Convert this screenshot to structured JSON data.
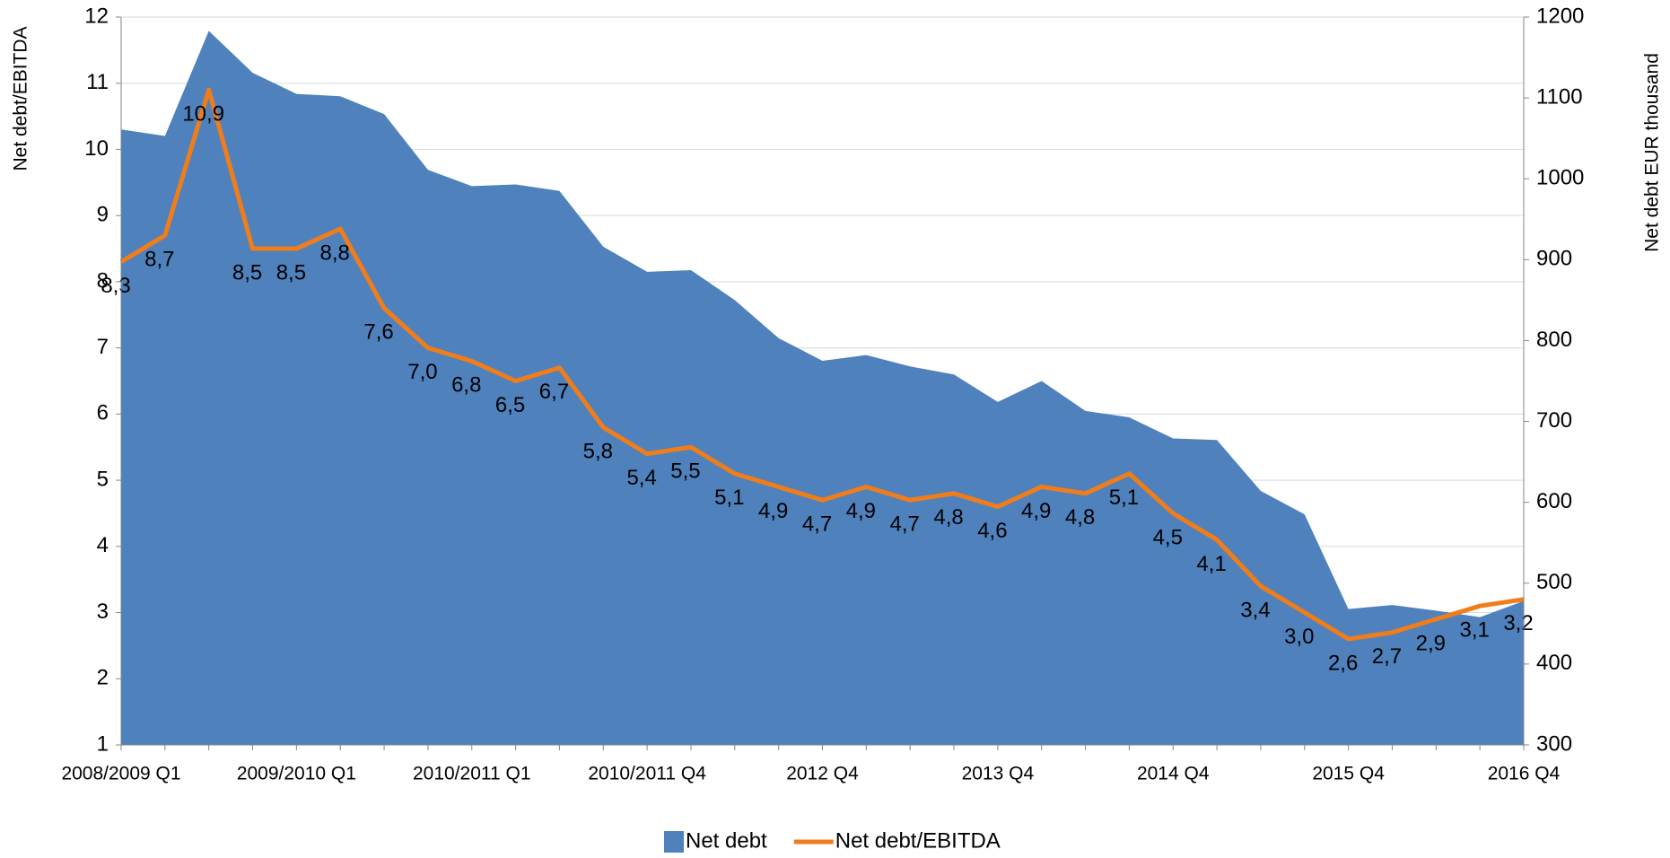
{
  "chart_data": {
    "type": "area_line",
    "categories": [
      "2008/2009 Q1",
      null,
      null,
      null,
      "2009/2010 Q1",
      null,
      null,
      null,
      "2010/2011 Q1",
      null,
      null,
      null,
      "2010/2011 Q4",
      null,
      null,
      null,
      "2012 Q4",
      null,
      null,
      null,
      "2013 Q4",
      null,
      null,
      null,
      "2014 Q4",
      null,
      null,
      null,
      "2015 Q4",
      null,
      null,
      null,
      "2016 Q4"
    ],
    "y_label": "Net debt/EBITDA",
    "y2_label": "Net debt EUR thousand",
    "ylim": [
      1,
      12
    ],
    "yticks": [
      1,
      2,
      3,
      4,
      5,
      6,
      7,
      8,
      9,
      10,
      11,
      12
    ],
    "y2lim": [
      300,
      1200
    ],
    "y2ticks": [
      300,
      400,
      500,
      600,
      700,
      800,
      900,
      1000,
      1100,
      1200
    ],
    "grid": true,
    "legend": "bottom",
    "series": [
      {
        "name": "Net debt",
        "type": "area",
        "axis": "y2",
        "color": "#4f81bd",
        "values": [
          1061,
          1053,
          1183,
          1131,
          1105,
          1102,
          1080,
          1011,
          991,
          993,
          985,
          916,
          885,
          887,
          850,
          803,
          775,
          782,
          768,
          758,
          724,
          750,
          713,
          705,
          679,
          677,
          614,
          585,
          468,
          473,
          466,
          458,
          478
        ]
      },
      {
        "name": "Net debt/EBITDA",
        "type": "line",
        "axis": "y",
        "color": "#f07d1a",
        "values": [
          8.3,
          8.7,
          10.9,
          8.5,
          8.5,
          8.8,
          7.6,
          7.0,
          6.8,
          6.5,
          6.7,
          5.8,
          5.4,
          5.5,
          5.1,
          4.9,
          4.7,
          4.9,
          4.7,
          4.8,
          4.6,
          4.9,
          4.8,
          5.1,
          4.5,
          4.1,
          3.4,
          3.0,
          2.6,
          2.7,
          2.9,
          3.1,
          3.2
        ],
        "value_labels": [
          "8,3",
          "8,7",
          "10,9",
          "8,5",
          "8,5",
          "8,8",
          "7,6",
          "7,0",
          "6,8",
          "6,5",
          "6,7",
          "5,8",
          "5,4",
          "5,5",
          "5,1",
          "4,9",
          "4,7",
          "4,9",
          "4,7",
          "4,8",
          "4,6",
          "4,9",
          "4,8",
          "5,1",
          "4,5",
          "4,1",
          "3,4",
          "3,0",
          "2,6",
          "2,7",
          "2,9",
          "3,1",
          "3,2"
        ]
      }
    ]
  }
}
